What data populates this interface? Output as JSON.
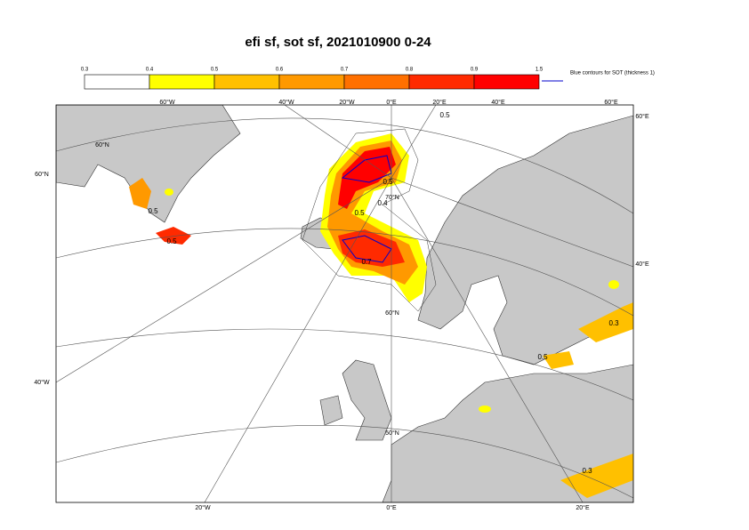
{
  "header": {
    "title": "efi sf, sot sf, 2021010900 0-24"
  },
  "colorbar": {
    "labels": [
      "0.3",
      "0.4",
      "0.5",
      "0.6",
      "0.7",
      "0.8",
      "0.9",
      "1.5"
    ],
    "colors": [
      "#ffffff",
      "#ffffff",
      "#ffff00",
      "#ffc000",
      "#ff9900",
      "#ff7000",
      "#ff2a00",
      "#ff0000"
    ]
  },
  "legend": {
    "text": "Blue contours for SOT (thickness 1)",
    "color": "#0000cc"
  },
  "graticule": {
    "top": [
      "60°W",
      "40°W",
      "20°W",
      "0°E",
      "20°E",
      "40°E",
      "60°E"
    ],
    "left": [
      "60°N",
      "40°W"
    ],
    "right": [
      "60°E",
      "40°E"
    ],
    "bottom": [
      "20°W",
      "0°E",
      "20°E"
    ],
    "inner": [
      "60°N",
      "70°N",
      "60°N",
      "50°N"
    ]
  },
  "contour_labels": [
    "0.5",
    "0.5",
    "0.5",
    "0.5",
    "0.4",
    "0.7",
    "0.3",
    "0.5",
    "0.5",
    "0.3"
  ]
}
